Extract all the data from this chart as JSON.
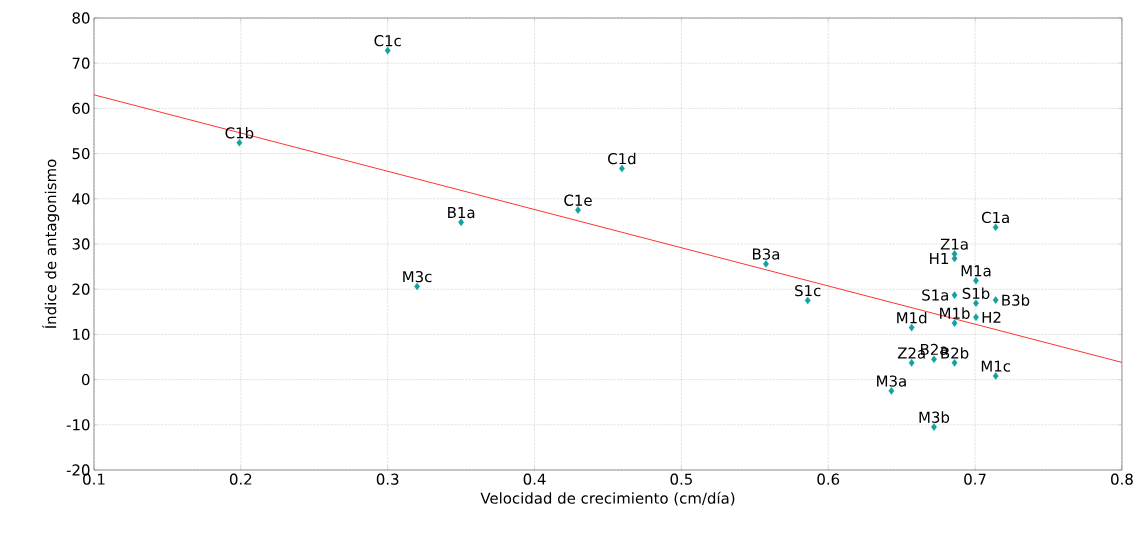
{
  "chart_data": {
    "type": "scatter",
    "xlabel": "Velocidad de crecimiento (cm/día)",
    "ylabel": "Índice de antagonismo",
    "xlim": [
      0.1,
      0.8
    ],
    "xticks": [
      0.1,
      0.2,
      0.3,
      0.4,
      0.5,
      0.6,
      0.7,
      0.8
    ],
    "ylim": [
      -20,
      80
    ],
    "yticks": [
      -20,
      -10,
      0,
      10,
      20,
      30,
      40,
      50,
      60,
      70,
      80
    ],
    "grid": true,
    "series": [
      {
        "type": "scatter",
        "marker": "diamond",
        "color": "#12a0a0",
        "x": [
          0.199,
          0.3,
          0.4595,
          0.4296,
          0.35,
          0.32,
          0.5576,
          0.586,
          0.714,
          0.686,
          0.686,
          0.7006,
          0.686,
          0.714,
          0.7006,
          0.7006,
          0.686,
          0.6568,
          0.6568,
          0.672,
          0.686,
          0.714,
          0.643,
          0.672
        ],
        "values": [
          52.4,
          72.8,
          46.7,
          37.5,
          34.8,
          20.6,
          25.6,
          17.5,
          33.7,
          27.8,
          26.8,
          21.9,
          18.7,
          17.6,
          16.9,
          13.8,
          12.5,
          11.5,
          3.7,
          4.5,
          3.7,
          0.8,
          -2.5,
          -10.5
        ]
      },
      {
        "type": "line",
        "marker": "none",
        "color": "#ff0000",
        "x": [
          0.1,
          0.8
        ],
        "values": [
          63.0,
          3.8
        ]
      }
    ],
    "annotations": [
      {
        "text": "C1b",
        "x": 0.199,
        "y": 52.4
      },
      {
        "text": "C1c",
        "x": 0.3,
        "y": 72.8
      },
      {
        "text": "C1d",
        "x": 0.4595,
        "y": 46.7
      },
      {
        "text": "C1e",
        "x": 0.4296,
        "y": 37.5
      },
      {
        "text": "B1a",
        "x": 0.35,
        "y": 34.8
      },
      {
        "text": "M3c",
        "x": 0.32,
        "y": 20.6
      },
      {
        "text": "B3a",
        "x": 0.5576,
        "y": 25.6
      },
      {
        "text": "S1c",
        "x": 0.586,
        "y": 17.5
      },
      {
        "text": "C1a",
        "x": 0.714,
        "y": 33.7
      },
      {
        "text": "Z1a",
        "x": 0.686,
        "y": 27.8
      },
      {
        "text": "H1",
        "x": 0.686,
        "y": 26.8
      },
      {
        "text": "M1a",
        "x": 0.7006,
        "y": 21.9
      },
      {
        "text": "S1a",
        "x": 0.686,
        "y": 18.7
      },
      {
        "text": "B3b",
        "x": 0.714,
        "y": 17.6
      },
      {
        "text": "S1b",
        "x": 0.7006,
        "y": 16.9
      },
      {
        "text": "H2",
        "x": 0.7006,
        "y": 13.8
      },
      {
        "text": "M1b",
        "x": 0.686,
        "y": 12.5
      },
      {
        "text": "M1d",
        "x": 0.6568,
        "y": 11.5
      },
      {
        "text": "Z2a",
        "x": 0.6568,
        "y": 3.7
      },
      {
        "text": "B2a",
        "x": 0.672,
        "y": 4.5
      },
      {
        "text": "B2b",
        "x": 0.686,
        "y": 3.7
      },
      {
        "text": "M1c",
        "x": 0.714,
        "y": 0.8
      },
      {
        "text": "M3a",
        "x": 0.643,
        "y": -2.5
      },
      {
        "text": "M3b",
        "x": 0.672,
        "y": -10.5
      }
    ]
  }
}
